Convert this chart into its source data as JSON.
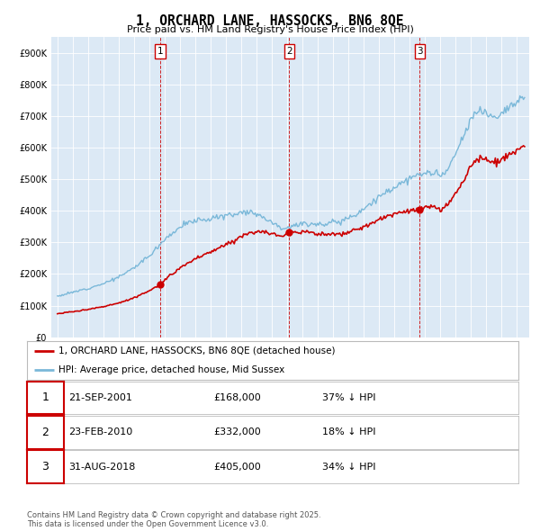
{
  "title": "1, ORCHARD LANE, HASSOCKS, BN6 8QE",
  "subtitle": "Price paid vs. HM Land Registry's House Price Index (HPI)",
  "bg_color": "#dce9f5",
  "fig_bg_color": "#ffffff",
  "hpi_color": "#7ab8d9",
  "price_color": "#cc0000",
  "ylim": [
    0,
    950000
  ],
  "yticks": [
    0,
    100000,
    200000,
    300000,
    400000,
    500000,
    600000,
    700000,
    800000,
    900000
  ],
  "xlim_start": 1994.6,
  "xlim_end": 2025.8,
  "sale_years": [
    2001.72,
    2010.14,
    2018.66
  ],
  "sale_prices": [
    168000,
    332000,
    405000
  ],
  "sale_labels": [
    "1",
    "2",
    "3"
  ],
  "transactions": [
    {
      "date": "2001-09-21",
      "price": 168000,
      "label": "1"
    },
    {
      "date": "2010-02-23",
      "price": 332000,
      "label": "2"
    },
    {
      "date": "2018-08-31",
      "price": 405000,
      "label": "3"
    }
  ],
  "table_rows": [
    {
      "num": "1",
      "date": "21-SEP-2001",
      "price": "£168,000",
      "pct": "37% ↓ HPI"
    },
    {
      "num": "2",
      "date": "23-FEB-2010",
      "price": "£332,000",
      "pct": "18% ↓ HPI"
    },
    {
      "num": "3",
      "date": "31-AUG-2018",
      "price": "£405,000",
      "pct": "34% ↓ HPI"
    }
  ],
  "legend_entries": [
    "1, ORCHARD LANE, HASSOCKS, BN6 8QE (detached house)",
    "HPI: Average price, detached house, Mid Sussex"
  ],
  "footer": "Contains HM Land Registry data © Crown copyright and database right 2025.\nThis data is licensed under the Open Government Licence v3.0."
}
